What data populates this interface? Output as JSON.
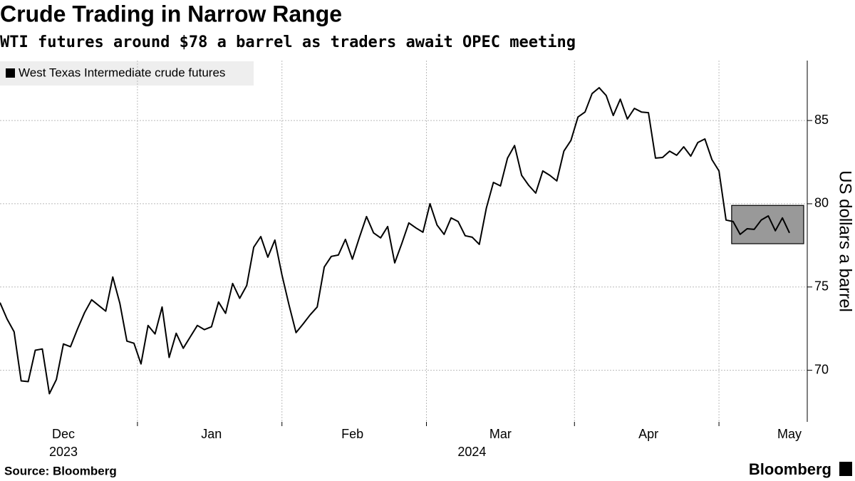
{
  "chart_data": {
    "type": "line",
    "title": "Crude Trading in Narrow Range",
    "subtitle": "WTI futures around $78 a barrel as traders await OPEC meeting",
    "y_axis_label": "US dollars a barrel",
    "source": "Source: Bloomberg",
    "brand": "Bloomberg",
    "categories": [
      null,
      null,
      null,
      null,
      null,
      null,
      null,
      null,
      null,
      "Dec",
      null,
      null,
      null,
      null,
      null,
      null,
      null,
      null,
      null,
      null,
      null,
      null,
      null,
      null,
      null,
      null,
      null,
      null,
      null,
      null,
      "Jan",
      null,
      null,
      null,
      null,
      null,
      null,
      null,
      null,
      null,
      null,
      null,
      null,
      null,
      null,
      null,
      null,
      null,
      null,
      null,
      "Feb",
      null,
      null,
      null,
      null,
      null,
      null,
      null,
      null,
      null,
      null,
      null,
      null,
      null,
      null,
      null,
      null,
      null,
      null,
      null,
      null,
      "Mar",
      null,
      null,
      null,
      null,
      null,
      null,
      null,
      null,
      null,
      null,
      null,
      null,
      null,
      null,
      null,
      null,
      null,
      null,
      null,
      null,
      "Apr",
      null,
      null,
      null,
      null,
      null,
      null,
      null,
      null,
      null,
      null,
      null,
      null,
      null,
      null,
      null,
      null,
      null,
      null,
      null,
      "May"
    ],
    "year_labels": [
      "2023",
      "2024"
    ],
    "series": [
      {
        "name": "West Texas Intermediate crude futures",
        "color": "#000000",
        "values": [
          74.06,
          73.08,
          72.31,
          69.36,
          69.32,
          71.2,
          71.28,
          68.59,
          69.44,
          71.58,
          71.41,
          72.48,
          73.46,
          74.23,
          73.89,
          73.55,
          75.6,
          74.02,
          71.75,
          71.62,
          70.38,
          72.69,
          72.18,
          73.8,
          70.77,
          72.22,
          71.32,
          72.01,
          72.69,
          72.44,
          72.61,
          74.1,
          73.42,
          75.21,
          74.32,
          75.09,
          77.39,
          78.03,
          76.79,
          77.82,
          75.73,
          73.93,
          72.26,
          72.78,
          73.33,
          73.8,
          76.2,
          76.84,
          76.92,
          77.86,
          76.67,
          77.99,
          79.23,
          78.25,
          77.95,
          78.63,
          76.45,
          77.61,
          78.85,
          78.55,
          78.29,
          80.0,
          78.72,
          78.16,
          79.15,
          78.93,
          78.08,
          77.99,
          77.56,
          79.74,
          81.28,
          81.07,
          82.74,
          83.5,
          81.71,
          81.11,
          80.64,
          81.97,
          81.71,
          81.37,
          83.16,
          83.8,
          85.21,
          85.51,
          86.62,
          86.97,
          86.5,
          85.3,
          86.28,
          85.09,
          85.73,
          85.51,
          85.47,
          82.74,
          82.78,
          83.16,
          82.91,
          83.42,
          82.86,
          83.68,
          83.89,
          82.65,
          81.97,
          79.02,
          78.93,
          78.16,
          78.5,
          78.46,
          79.02,
          79.27,
          78.38,
          79.15,
          78.25
        ]
      }
    ],
    "highlight": {
      "start_index": 104,
      "range": [
        77.6,
        79.9
      ],
      "color": "#999999"
    },
    "ylim": [
      66.9,
      88.6
    ],
    "yticks": [
      70,
      75,
      80,
      85
    ],
    "grid": true
  }
}
